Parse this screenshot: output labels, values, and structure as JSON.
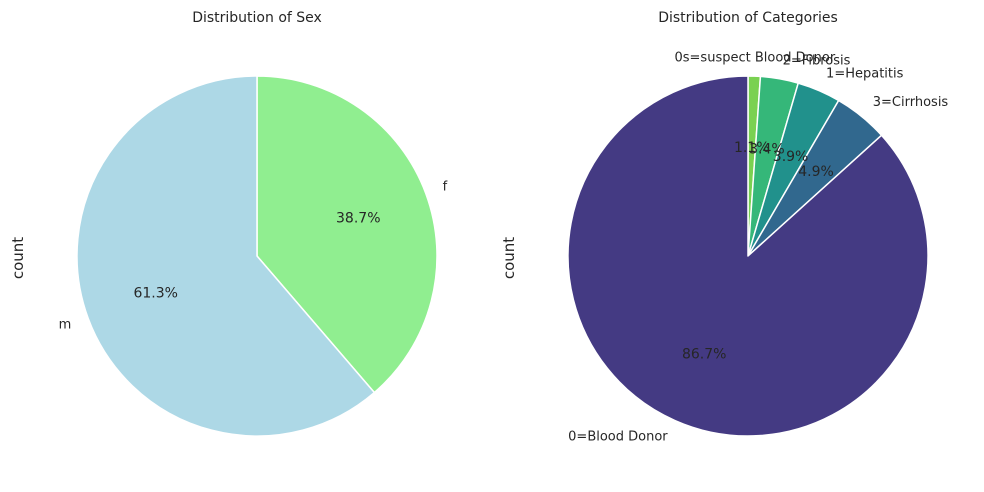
{
  "chart_data": [
    {
      "type": "pie",
      "title": "Distribution of Sex",
      "ylabel": "count",
      "start_angle_deg": 90,
      "counterclockwise": false,
      "slices": [
        {
          "label": "f",
          "value": 38.7,
          "pct_label": "38.7%",
          "color": "#90EE90"
        },
        {
          "label": "m",
          "value": 61.3,
          "pct_label": "61.3%",
          "color": "#ADD8E6"
        }
      ]
    },
    {
      "type": "pie",
      "title": "Distribution of Categories",
      "ylabel": "count",
      "start_angle_deg": 90,
      "counterclockwise": false,
      "slices": [
        {
          "label": "0s=suspect Blood Donor",
          "value": 1.1,
          "pct_label": "1.1%",
          "color": "#7AD151"
        },
        {
          "label": "2=Fibrosis",
          "value": 3.4,
          "pct_label": "3.4%",
          "color": "#35B779"
        },
        {
          "label": "1=Hepatitis",
          "value": 3.9,
          "pct_label": "3.9%",
          "color": "#21918C"
        },
        {
          "label": "3=Cirrhosis",
          "value": 4.9,
          "pct_label": "4.9%",
          "color": "#31688E"
        },
        {
          "label": "0=Blood Donor",
          "value": 86.7,
          "pct_label": "86.7%",
          "color": "#443A83"
        }
      ]
    }
  ]
}
